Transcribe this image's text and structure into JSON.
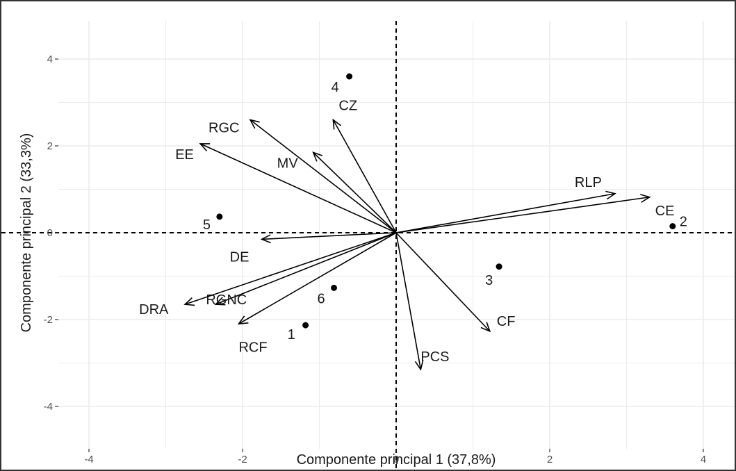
{
  "chart_data": {
    "type": "scatter",
    "subtype": "pca-biplot",
    "title": "",
    "xlabel": "Componente principal 1 (37,8%)",
    "ylabel": "Componente principal 2 (33,3%)",
    "xlim": [
      -5.0,
      4.45
    ],
    "ylim": [
      -4.9,
      4.95
    ],
    "xticks": [
      -4,
      -2,
      0,
      2,
      4
    ],
    "yticks": [
      -4,
      -2,
      0,
      2,
      4
    ],
    "grid": true,
    "legend": "none",
    "reference_lines": {
      "x": 0,
      "y": 0,
      "style": "dashed"
    },
    "colors": {
      "grid": "#ebebeb",
      "ink": "#000000",
      "frame": "#333333"
    },
    "points": [
      {
        "label": "1",
        "x": -1.18,
        "y": -2.13
      },
      {
        "label": "2",
        "x": 3.6,
        "y": 0.15
      },
      {
        "label": "3",
        "x": 1.34,
        "y": -0.78
      },
      {
        "label": "4",
        "x": -0.61,
        "y": 3.6
      },
      {
        "label": "5",
        "x": -2.3,
        "y": 0.37
      },
      {
        "label": "6",
        "x": -0.81,
        "y": -1.27
      }
    ],
    "vectors": [
      {
        "label": "RGC",
        "x": -1.9,
        "y": 2.6
      },
      {
        "label": "CZ",
        "x": -0.82,
        "y": 2.6
      },
      {
        "label": "EE",
        "x": -2.55,
        "y": 2.05
      },
      {
        "label": "MV",
        "x": -1.08,
        "y": 1.85
      },
      {
        "label": "RLP",
        "x": 2.85,
        "y": 0.9
      },
      {
        "label": "CE",
        "x": 3.3,
        "y": 0.82
      },
      {
        "label": "DE",
        "x": -1.75,
        "y": -0.15
      },
      {
        "label": "RGNC",
        "x": -2.35,
        "y": -1.65
      },
      {
        "label": "DRA",
        "x": -2.75,
        "y": -1.65
      },
      {
        "label": "RCF",
        "x": -2.05,
        "y": -2.1
      },
      {
        "label": "CF",
        "x": 1.22,
        "y": -2.27
      },
      {
        "label": "PCS",
        "x": 0.32,
        "y": -3.15
      }
    ]
  }
}
